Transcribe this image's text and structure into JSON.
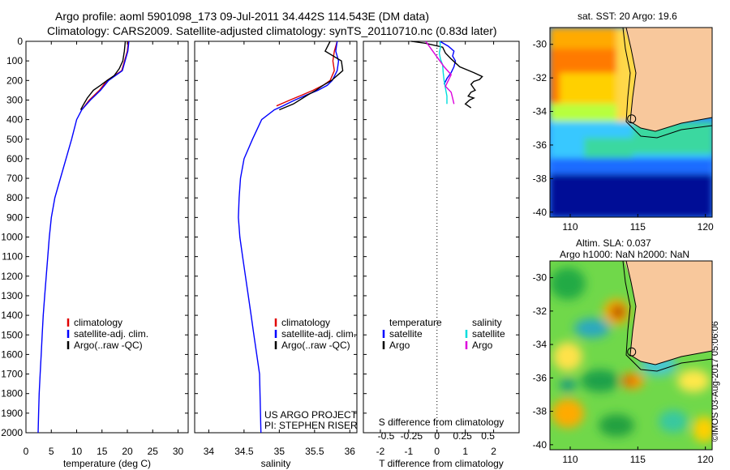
{
  "header": {
    "title_line1": "Argo profile: aoml 5901098_173 09-Jul-2011 34.442S 114.543E (DM data)",
    "title_line2": "Climatology: CARS2009. Satellite-adjusted climatology: synTS_20110710.nc (0.83d later)"
  },
  "map_titles": {
    "sst": "sat. SST: 20 Argo: 19.6",
    "sla_line1": "Altim. SLA: 0.037",
    "sla_line2": "Argo h1000: NaN h2000: NaN"
  },
  "stamp": "©IMOS 03-Aug-2017 05:06:06",
  "project_credit": {
    "line1": "US ARGO PROJECT",
    "line2": "PI: STEPHEN RISER"
  },
  "colors": {
    "climatology": "#e00000",
    "satellite": "#0000ff",
    "argo": "#000000",
    "salinity_satellite": "#00dddd",
    "salinity_argo": "#dd00dd",
    "land": "#f8c89c",
    "coast": "#000000"
  },
  "chart_data": [
    {
      "type": "line",
      "panel": "temperature",
      "xlabel": "temperature (deg C)",
      "ylabel": "",
      "xlim": [
        0,
        32
      ],
      "ylim": [
        2000,
        0
      ],
      "xticks": [
        0,
        5,
        10,
        15,
        20,
        25,
        30
      ],
      "yticks": [
        0,
        100,
        200,
        300,
        400,
        500,
        600,
        700,
        800,
        900,
        1000,
        1100,
        1200,
        1300,
        1400,
        1500,
        1600,
        1700,
        1800,
        1900,
        2000
      ],
      "legend": [
        "climatology",
        "satellite-adj. clim.",
        "Argo(..raw -QC)"
      ],
      "series": [
        {
          "name": "climatology",
          "color": "#e00000",
          "x": [
            20.2,
            20.0,
            18.9,
            16.0,
            14.5,
            12.5,
            11.0
          ],
          "y": [
            0,
            50,
            150,
            200,
            250,
            300,
            350
          ]
        },
        {
          "name": "satellite-adj. clim.",
          "color": "#0000ff",
          "x": [
            20.3,
            20.1,
            19.0,
            16.3,
            14.7,
            12.7,
            11.0,
            10.0,
            9.0,
            7.9,
            6.8,
            5.7,
            5.0,
            4.6,
            4.3,
            4.0,
            3.7,
            3.4,
            3.2,
            3.0,
            2.8,
            2.6,
            2.5,
            2.4
          ],
          "y": [
            0,
            50,
            150,
            200,
            250,
            300,
            350,
            400,
            500,
            600,
            700,
            800,
            900,
            1000,
            1100,
            1200,
            1300,
            1400,
            1500,
            1600,
            1700,
            1800,
            1900,
            2000
          ]
        },
        {
          "name": "Argo(..raw -QC)",
          "color": "#000000",
          "x": [
            19.6,
            19.4,
            19.1,
            18.4,
            17.4,
            16.0,
            14.7,
            13.3,
            12.1,
            11.2,
            10.8
          ],
          "y": [
            0,
            50,
            100,
            140,
            175,
            200,
            225,
            250,
            290,
            330,
            350
          ]
        }
      ]
    },
    {
      "type": "line",
      "panel": "salinity",
      "xlabel": "salinity",
      "ylabel": "",
      "xlim": [
        33.8,
        36.1
      ],
      "ylim": [
        2000,
        0
      ],
      "xticks": [
        34,
        34.5,
        35,
        35.5,
        36
      ],
      "legend": [
        "climatology",
        "satellite-adj. clim.",
        "Argo(..raw -QC)"
      ],
      "series": [
        {
          "name": "climatology",
          "color": "#e00000",
          "x": [
            35.82,
            35.78,
            35.76,
            35.78,
            35.72,
            35.62,
            35.48,
            35.32,
            35.15,
            34.96
          ],
          "y": [
            0,
            50,
            100,
            150,
            200,
            225,
            250,
            275,
            300,
            330
          ]
        },
        {
          "name": "satellite-adj. clim.",
          "color": "#0000ff",
          "x": [
            35.82,
            35.8,
            35.84,
            35.82,
            35.75,
            35.68,
            35.55,
            35.38,
            35.22,
            35.05,
            34.93,
            34.75,
            34.62,
            34.5,
            34.45,
            34.43,
            34.42,
            34.44,
            34.48,
            34.52,
            34.56,
            34.6,
            34.64,
            34.68,
            34.72,
            34.74
          ],
          "y": [
            0,
            50,
            100,
            150,
            200,
            225,
            250,
            275,
            300,
            330,
            350,
            400,
            500,
            600,
            700,
            800,
            900,
            1000,
            1100,
            1200,
            1300,
            1400,
            1500,
            1600,
            1700,
            2000
          ]
        },
        {
          "name": "Argo(..raw -QC)",
          "color": "#000000",
          "x": [
            35.72,
            35.65,
            35.88,
            35.9,
            35.74,
            35.62,
            35.52,
            35.4,
            35.2,
            35.0
          ],
          "y": [
            0,
            50,
            100,
            150,
            200,
            225,
            250,
            275,
            320,
            350
          ]
        }
      ]
    },
    {
      "type": "line",
      "panel": "difference",
      "xlabel": "T difference from climatology",
      "xlabel2": "S difference from climatology",
      "xlim": [
        -2.6,
        2.9
      ],
      "ylim": [
        2000,
        0
      ],
      "xticks": [
        -2,
        -1,
        0,
        1,
        2
      ],
      "xticks2": [
        "-0.5",
        "-0.25",
        "0",
        "0.25",
        "0.5"
      ],
      "legend_headers": [
        "temperature",
        "salinity"
      ],
      "legend": [
        "satellite",
        "Argo",
        "satellite",
        "Argo"
      ],
      "series": [
        {
          "name": "temperature satellite",
          "color": "#0000ff",
          "x": [
            0.1,
            0.4,
            0.6,
            0.55,
            0.65,
            0.6,
            0.5,
            0.35,
            0.25
          ],
          "y": [
            0,
            25,
            50,
            75,
            100,
            130,
            160,
            190,
            220
          ]
        },
        {
          "name": "temperature Argo",
          "color": "#000000",
          "x": [
            -0.9,
            -0.4,
            0.2,
            0.3,
            0.5,
            0.8,
            1.3,
            1.6,
            1.5,
            1.3,
            1.2,
            1.3,
            1.35,
            1.2,
            1.1,
            1.3,
            1.15,
            1.0,
            1.2
          ],
          "y": [
            0,
            10,
            30,
            60,
            90,
            130,
            160,
            180,
            195,
            205,
            220,
            240,
            250,
            260,
            280,
            290,
            300,
            320,
            340
          ]
        },
        {
          "name": "salinity satellite",
          "color": "#00dddd",
          "x": [
            0.1,
            0.12,
            0.08,
            0.12,
            0.2,
            0.22,
            0.25,
            0.3,
            0.35,
            0.35
          ],
          "y": [
            0,
            30,
            60,
            90,
            120,
            160,
            200,
            240,
            280,
            320
          ]
        },
        {
          "name": "salinity Argo",
          "color": "#dd00dd",
          "x": [
            -0.4,
            -0.2,
            0.0,
            0.25,
            0.5,
            0.4,
            0.3,
            0.5,
            0.55,
            0.6
          ],
          "y": [
            0,
            40,
            80,
            130,
            170,
            200,
            230,
            260,
            290,
            320
          ]
        }
      ]
    },
    {
      "type": "heatmap",
      "panel": "sst-map",
      "title": "sat. SST: 20 Argo: 19.6",
      "xlim": [
        108.5,
        120.5
      ],
      "ylim": [
        -40.3,
        -29.0
      ],
      "xticks": [
        110,
        115,
        120
      ],
      "yticks": [
        -30,
        -32,
        -34,
        -36,
        -38,
        -40
      ],
      "profile_location": [
        114.543,
        -34.442
      ]
    },
    {
      "type": "heatmap",
      "panel": "sla-map",
      "title": "Altim. SLA: 0.037",
      "xlim": [
        108.5,
        120.5
      ],
      "ylim": [
        -40.3,
        -29.0
      ],
      "xticks": [
        110,
        115,
        120
      ],
      "yticks": [
        -30,
        -32,
        -34,
        -36,
        -38,
        -40
      ],
      "profile_location": [
        114.543,
        -34.442
      ]
    }
  ]
}
